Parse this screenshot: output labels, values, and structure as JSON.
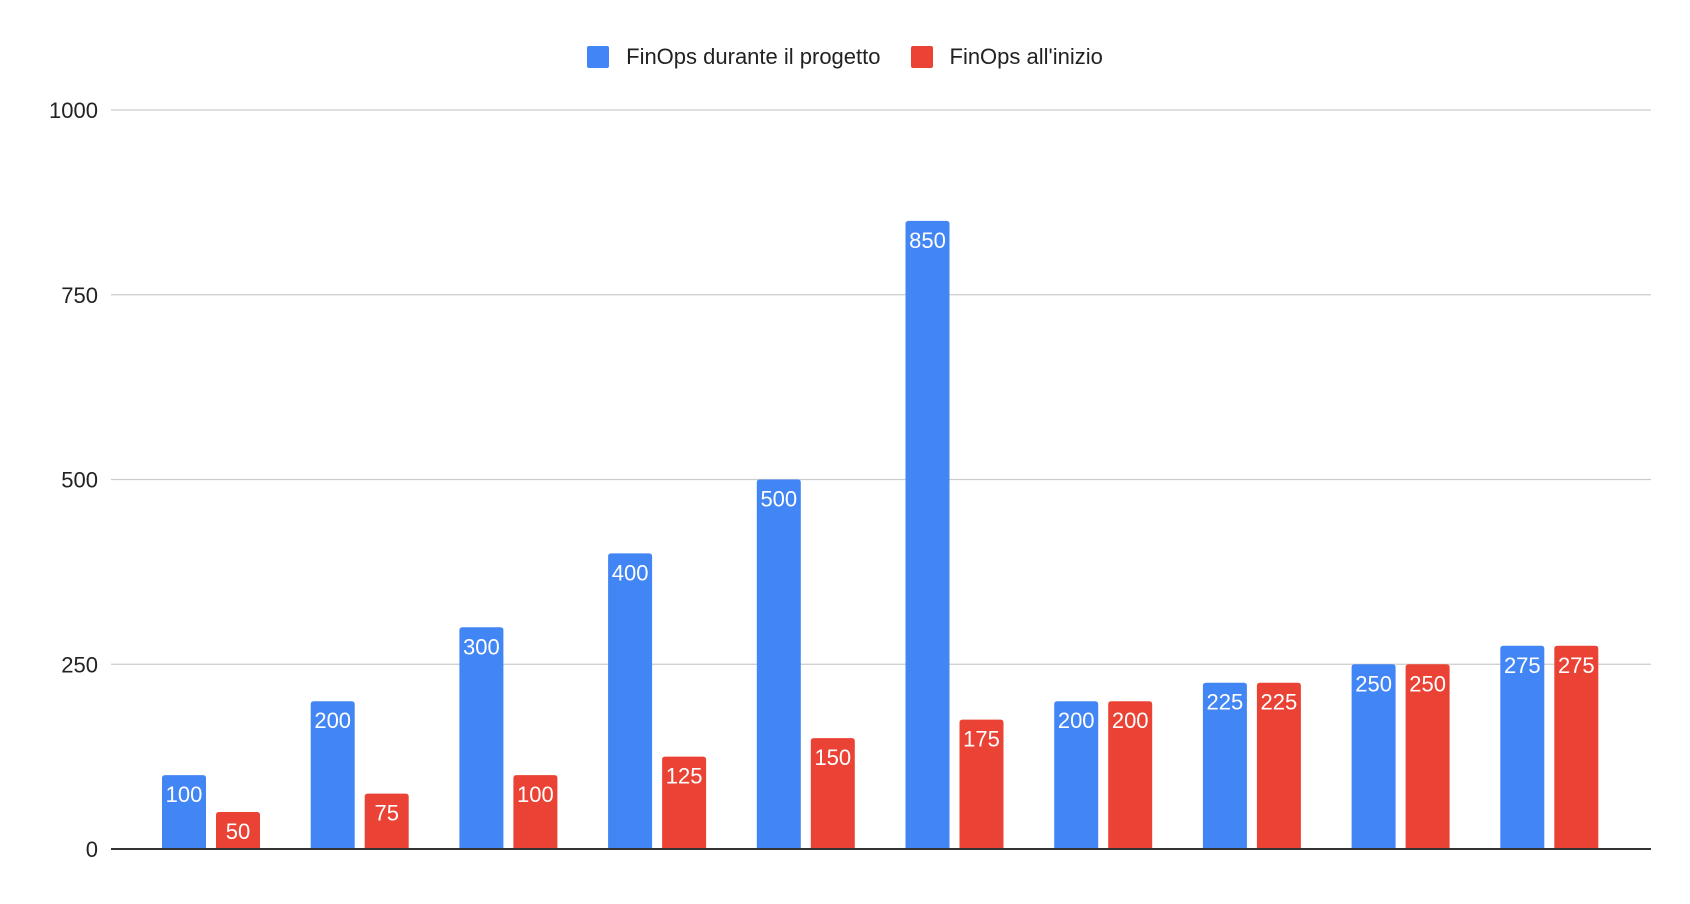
{
  "chart_data": {
    "type": "bar",
    "title": "",
    "xlabel": "",
    "ylabel": "",
    "categories": [
      "",
      "",
      "",
      "",
      "",
      "",
      "",
      "",
      "",
      ""
    ],
    "series": [
      {
        "name": "FinOps durante il progetto",
        "color": "#4285f4",
        "values": [
          100,
          200,
          300,
          400,
          500,
          850,
          200,
          225,
          250,
          275
        ]
      },
      {
        "name": "FinOps all'inizio",
        "color": "#ea4335",
        "values": [
          50,
          75,
          100,
          125,
          150,
          175,
          200,
          225,
          250,
          275
        ]
      }
    ],
    "ylim": [
      0,
      1000
    ],
    "yticks": [
      0,
      250,
      500,
      750,
      1000
    ],
    "grid": true,
    "legend_position": "top",
    "data_labels": true
  }
}
